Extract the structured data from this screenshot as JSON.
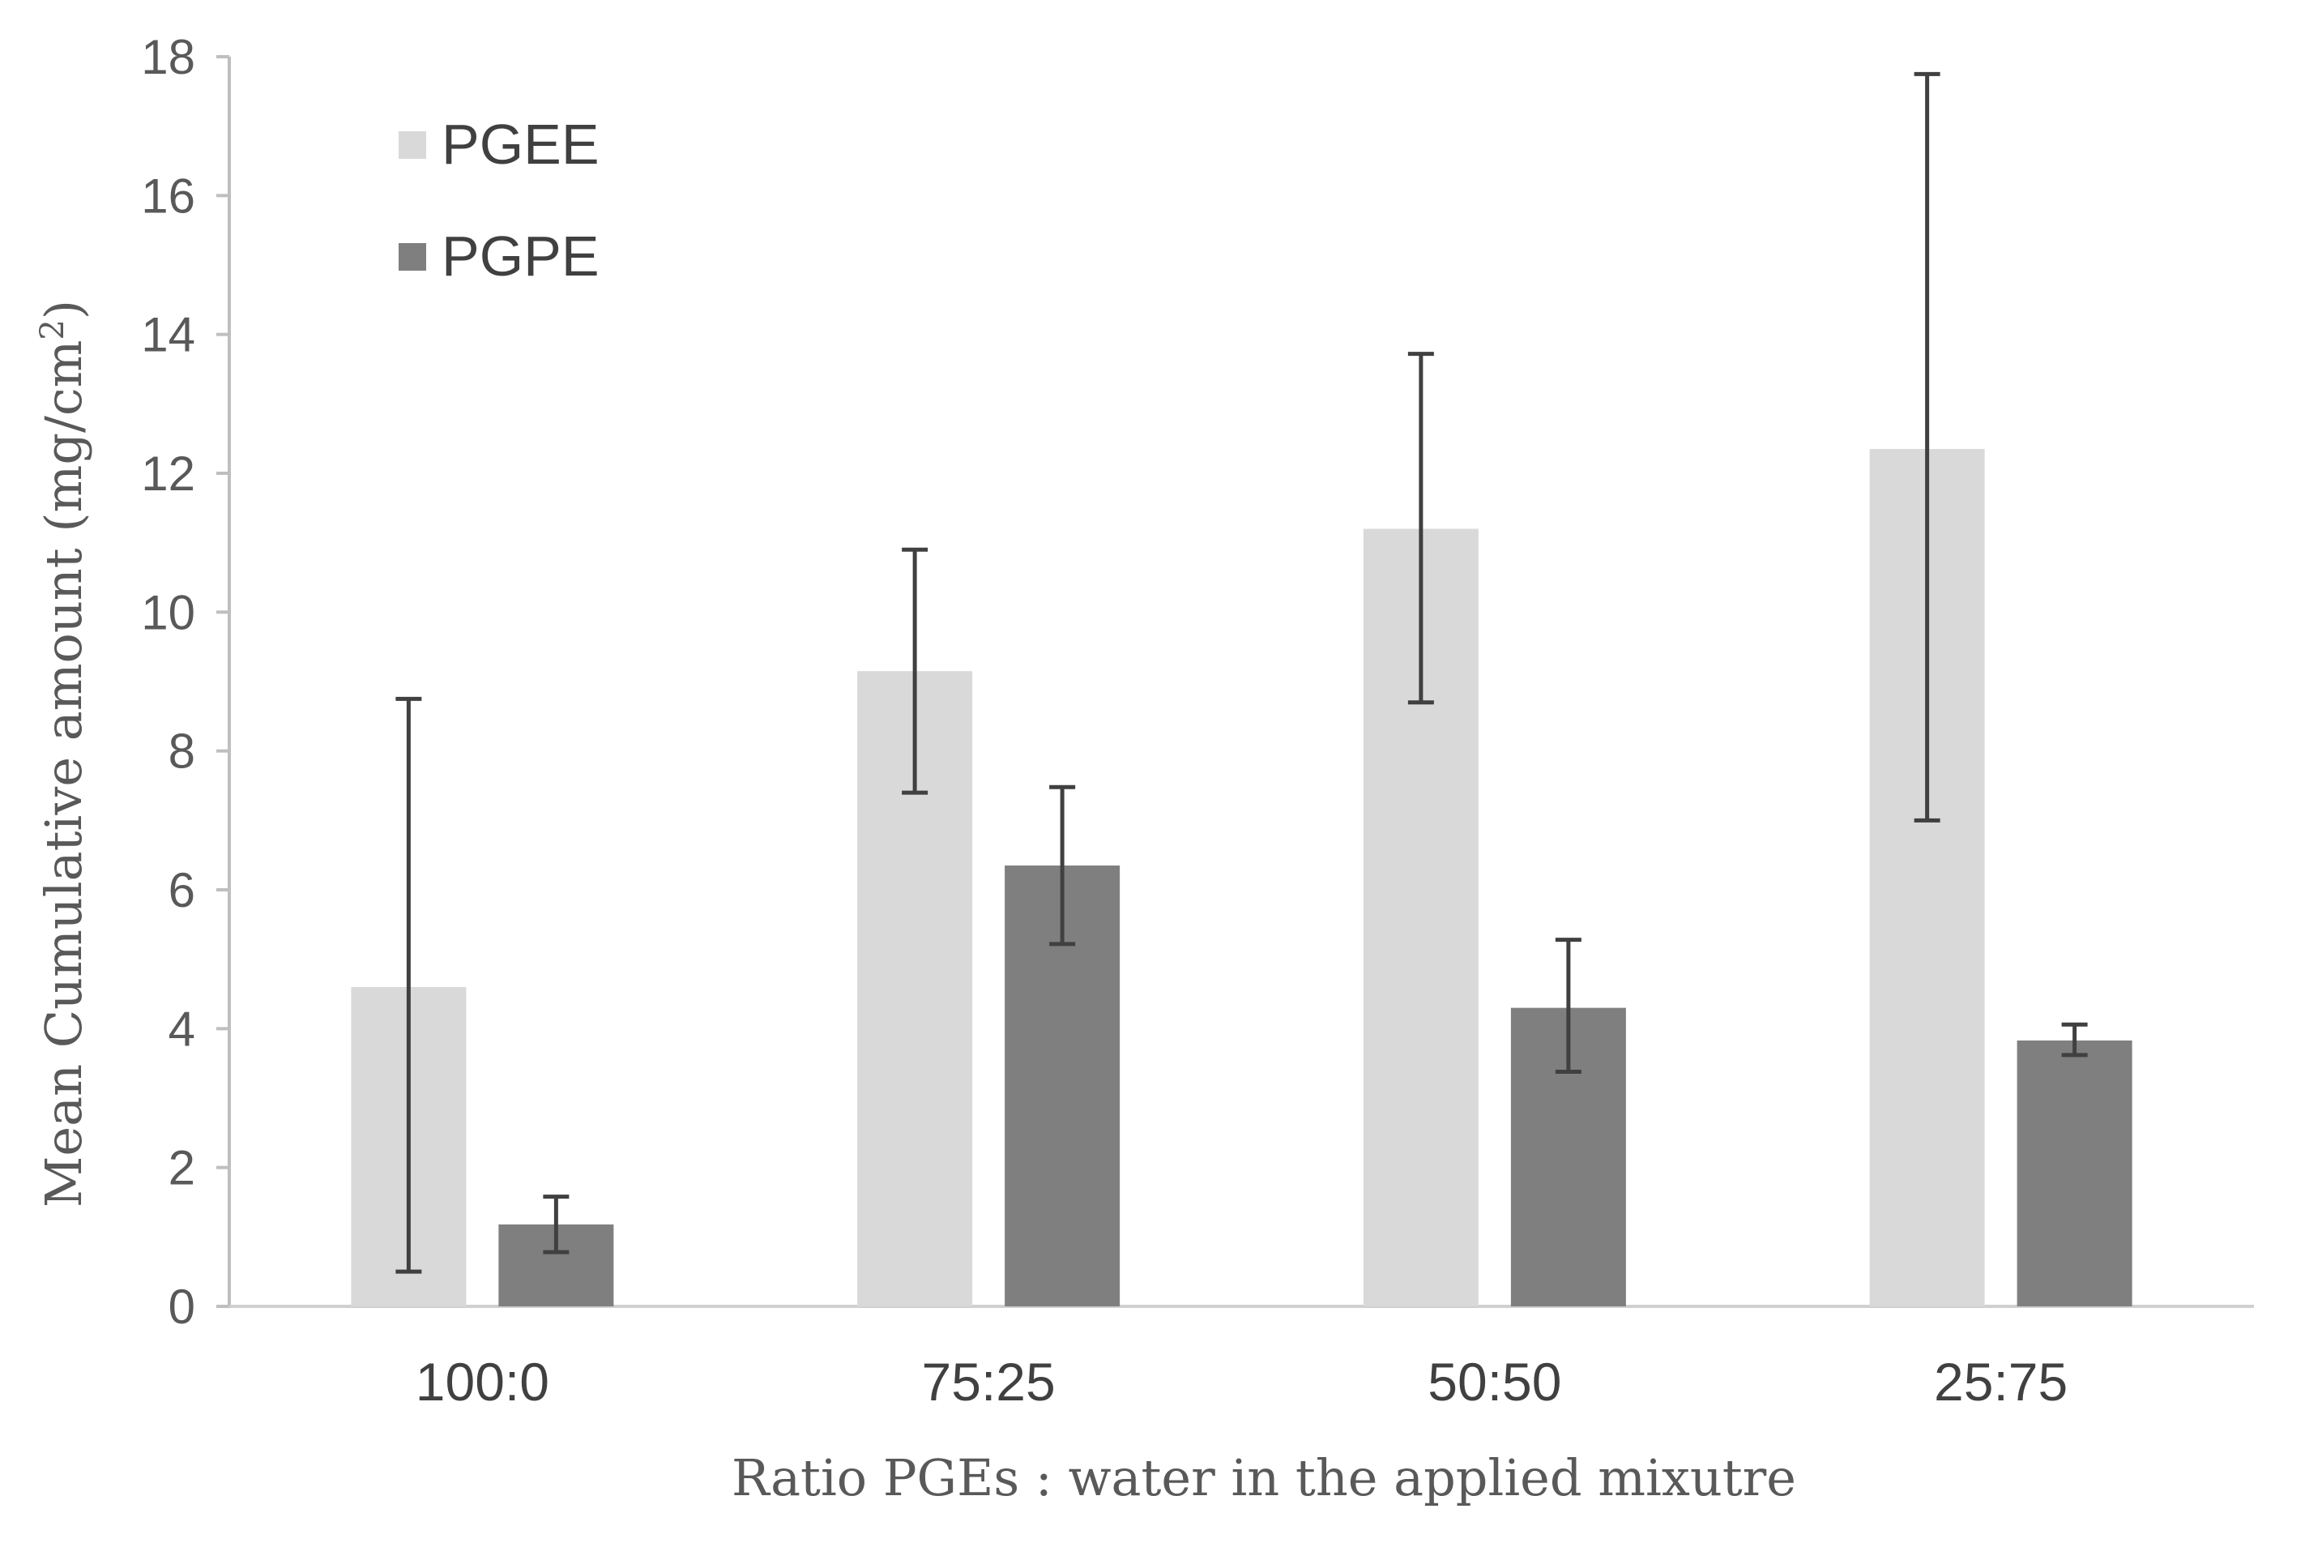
{
  "chart_data": {
    "type": "bar",
    "title": "",
    "xlabel": "Ratio PGEs : water in the applied mixutre",
    "ylabel": "Mean Cumulative amount (mg/cm",
    "ylabel_sup": "2",
    "ylabel_end": ")",
    "ylim": [
      0,
      18
    ],
    "yticks": [
      0,
      2,
      4,
      6,
      8,
      10,
      12,
      14,
      16,
      18
    ],
    "categories": [
      "100:0",
      "75:25",
      "50:50",
      "25:75"
    ],
    "series": [
      {
        "name": "PGEE",
        "color": "#d9d9d9",
        "values": [
          4.6,
          9.15,
          11.2,
          12.35
        ],
        "error_low": [
          0.5,
          7.4,
          8.7,
          7.0
        ],
        "error_high": [
          8.75,
          10.9,
          13.72,
          17.75
        ]
      },
      {
        "name": "PGPE",
        "color": "#7f7f7f",
        "values": [
          1.18,
          6.35,
          4.3,
          3.83
        ],
        "error_low": [
          0.78,
          5.22,
          3.38,
          3.62
        ],
        "error_high": [
          1.58,
          7.48,
          5.28,
          4.06
        ]
      }
    ],
    "legend": "top-left",
    "grid": false
  }
}
